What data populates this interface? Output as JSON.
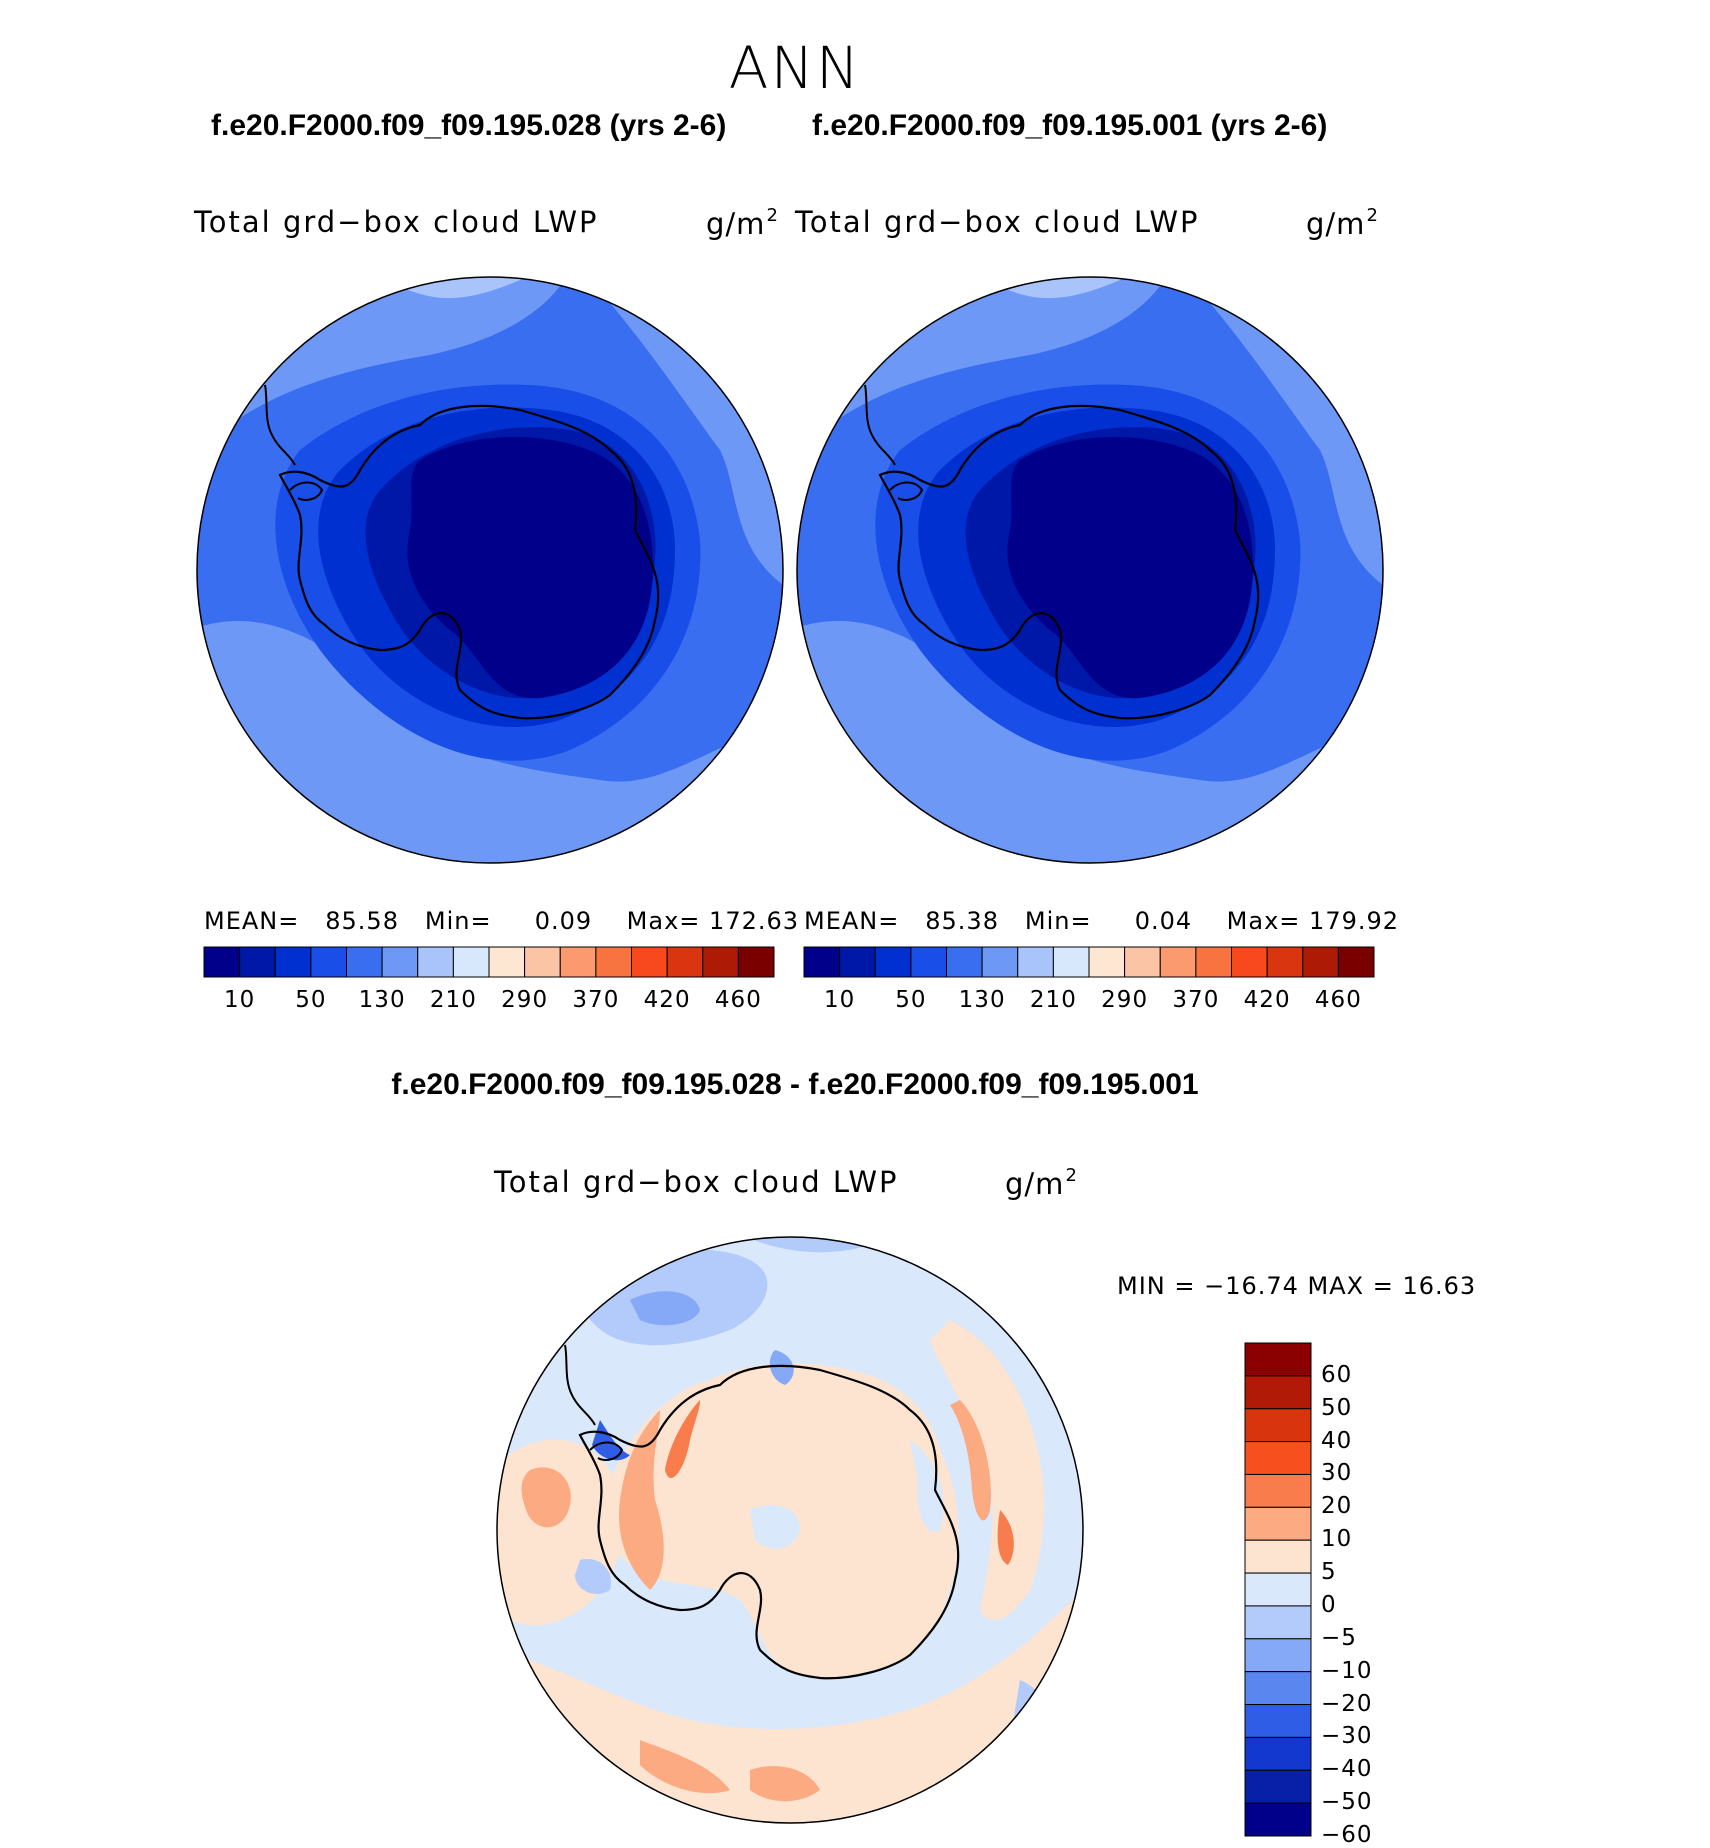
{
  "season": "ANN",
  "panels": [
    {
      "case_title": "f.e20.F2000.f09_f09.195.028 (yrs 2-6)",
      "var_title": "Total grd−box cloud LWP",
      "units_base": "g/m",
      "units_exp": "2",
      "mean_label": "MEAN=",
      "mean_value": "85.58",
      "min_label": "Min=",
      "min_value": "0.09",
      "max_label": "Max=",
      "max_value": "172.63"
    },
    {
      "case_title": "f.e20.F2000.f09_f09.195.001 (yrs 2-6)",
      "var_title": "Total grd−box cloud LWP",
      "units_base": "g/m",
      "units_exp": "2",
      "mean_label": "MEAN=",
      "mean_value": "85.38",
      "min_label": "Min=",
      "min_value": "0.04",
      "max_label": "Max=",
      "max_value": "179.92"
    }
  ],
  "colorbar": {
    "labels": [
      "10",
      "50",
      "130",
      "210",
      "290",
      "370",
      "420",
      "460"
    ],
    "colors": [
      "#00008b",
      "#0018a8",
      "#0030d0",
      "#1a4ee8",
      "#3a6ef0",
      "#6e98f5",
      "#a9c3fb",
      "#d7e7fc",
      "#fde6d2",
      "#fbc4a4",
      "#fb9a6e",
      "#f77440",
      "#f8491e",
      "#d83510",
      "#ad1a06",
      "#7a0000"
    ]
  },
  "difference": {
    "title": "f.e20.F2000.f09_f09.195.028 - f.e20.F2000.f09_f09.195.001",
    "var_title": "Total grd−box cloud LWP",
    "units_base": "g/m",
    "units_exp": "2",
    "minmax_text": "MIN = −16.74 MAX =   16.63",
    "colorbar_labels": [
      "60",
      "50",
      "40",
      "30",
      "20",
      "10",
      "5",
      "0",
      "−5",
      "−10",
      "−20",
      "−30",
      "−40",
      "−50",
      "−60"
    ],
    "colorbar_colors": [
      "#8b0000",
      "#b01a06",
      "#d8340e",
      "#f7501e",
      "#f97c4c",
      "#fbaa82",
      "#fde4d0",
      "#d9e8fb",
      "#b3cbfb",
      "#85a9f7",
      "#5a86f0",
      "#2f5de6",
      "#1238cf",
      "#0820a8",
      "#00008b"
    ]
  }
}
